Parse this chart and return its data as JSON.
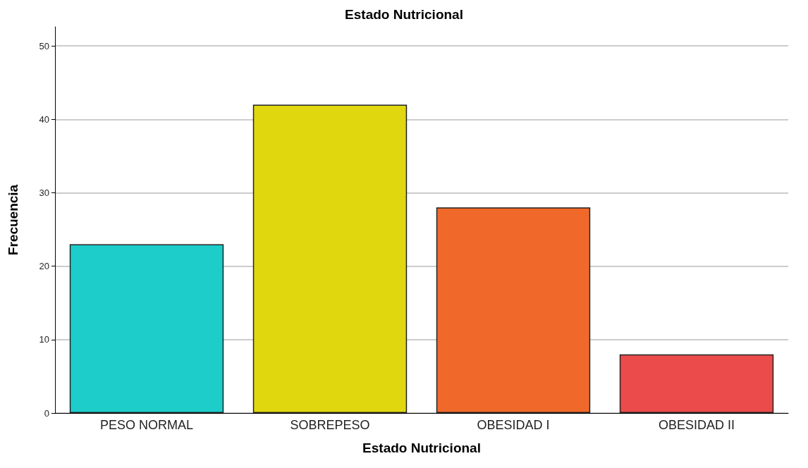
{
  "chart_data": {
    "type": "bar",
    "title": "Estado Nutricional",
    "xlabel": "Estado Nutricional",
    "ylabel": "Frecuencia",
    "categories": [
      "PESO NORMAL",
      "SOBREPESO",
      "OBESIDAD I",
      "OBESIDAD II"
    ],
    "values": [
      23,
      42,
      28,
      8
    ],
    "colors": [
      "#1ccdca",
      "#e1d70f",
      "#f1692a",
      "#eb4b4b"
    ],
    "ylim": [
      0,
      52.6
    ],
    "yticks": [
      0,
      10,
      20,
      30,
      40,
      50
    ],
    "grid": "y"
  }
}
